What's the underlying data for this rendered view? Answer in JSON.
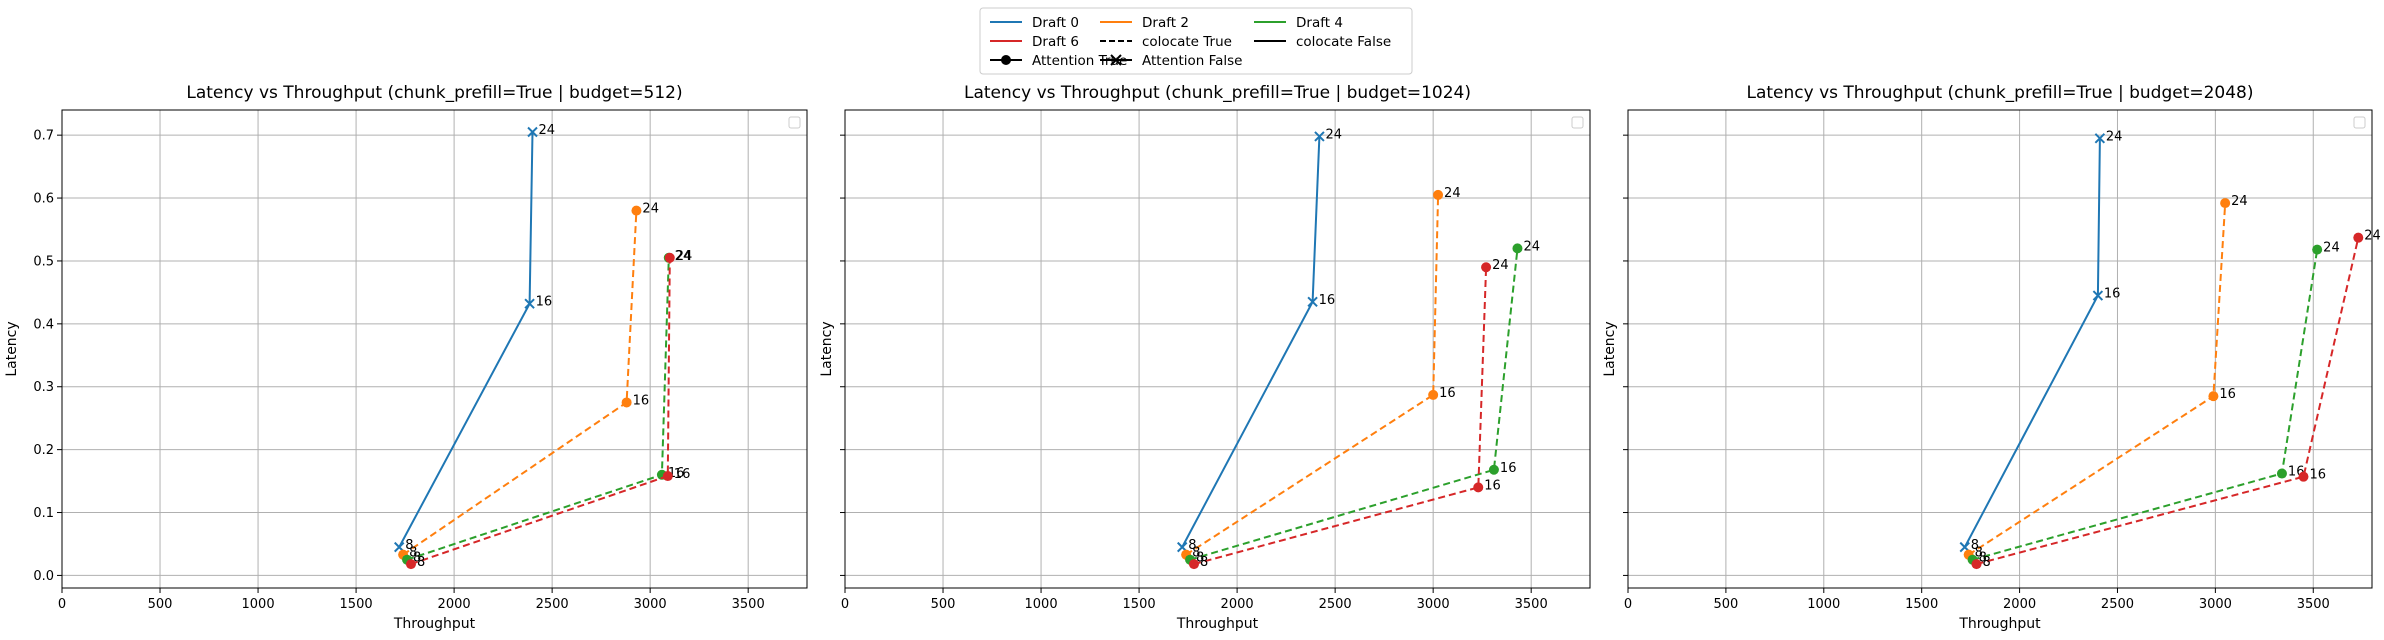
{
  "legend": {
    "entries": [
      {
        "label": "Draft 0",
        "color": "#1f77b4",
        "kind": "line"
      },
      {
        "label": "Draft 6",
        "color": "#d62728",
        "kind": "line"
      },
      {
        "label": "Attention True",
        "color": "#000000",
        "kind": "marker-o"
      },
      {
        "label": "Draft 2",
        "color": "#ff7f0e",
        "kind": "line"
      },
      {
        "label": "colocate True",
        "color": "#000000",
        "kind": "dashed"
      },
      {
        "label": "Attention False",
        "color": "#000000",
        "kind": "marker-x"
      },
      {
        "label": "Draft 4",
        "color": "#2ca02c",
        "kind": "line"
      },
      {
        "label": "colocate False",
        "color": "#000000",
        "kind": "solid"
      }
    ]
  },
  "chart_data": [
    {
      "type": "line",
      "title": "Latency vs Throughput (chunk_prefill=True | budget=512)",
      "xlabel": "Throughput",
      "ylabel": "Latency",
      "xlim": [
        0,
        3800
      ],
      "ylim": [
        -0.02,
        0.74
      ],
      "xticks": [
        "0",
        "500",
        "1000",
        "1500",
        "2000",
        "2500",
        "3000",
        "3500"
      ],
      "yticks": [
        "0.0",
        "0.1",
        "0.2",
        "0.3",
        "0.4",
        "0.5",
        "0.6",
        "0.7"
      ],
      "grid": true,
      "legend_placement": "top-right (empty box)",
      "series": [
        {
          "name": "Draft 0",
          "color": "#1f77b4",
          "dashed": false,
          "marker": "x",
          "points": [
            {
              "x": 1720,
              "y": 0.045,
              "label": "8"
            },
            {
              "x": 2385,
              "y": 0.432,
              "label": "16"
            },
            {
              "x": 2400,
              "y": 0.705,
              "label": "24"
            }
          ]
        },
        {
          "name": "Draft 2",
          "color": "#ff7f0e",
          "dashed": true,
          "marker": "o",
          "points": [
            {
              "x": 1740,
              "y": 0.033,
              "label": "8"
            },
            {
              "x": 2880,
              "y": 0.275,
              "label": "16"
            },
            {
              "x": 2930,
              "y": 0.58,
              "label": "24"
            }
          ]
        },
        {
          "name": "Draft 4",
          "color": "#2ca02c",
          "dashed": true,
          "marker": "o",
          "points": [
            {
              "x": 1760,
              "y": 0.025,
              "label": "8"
            },
            {
              "x": 3060,
              "y": 0.16,
              "label": "16"
            },
            {
              "x": 3095,
              "y": 0.505,
              "label": "24"
            }
          ]
        },
        {
          "name": "Draft 6",
          "color": "#d62728",
          "dashed": true,
          "marker": "o",
          "points": [
            {
              "x": 1780,
              "y": 0.018,
              "label": "8"
            },
            {
              "x": 3090,
              "y": 0.158,
              "label": "16"
            },
            {
              "x": 3100,
              "y": 0.505,
              "label": "24"
            }
          ]
        }
      ]
    },
    {
      "type": "line",
      "title": "Latency vs Throughput (chunk_prefill=True | budget=1024)",
      "xlabel": "Throughput",
      "ylabel": "Latency",
      "xlim": [
        0,
        3800
      ],
      "ylim": [
        -0.02,
        0.74
      ],
      "xticks": [
        "0",
        "500",
        "1000",
        "1500",
        "2000",
        "2500",
        "3000",
        "3500"
      ],
      "yticks": [],
      "grid": true,
      "legend_placement": "top-right (empty box)",
      "series": [
        {
          "name": "Draft 0",
          "color": "#1f77b4",
          "dashed": false,
          "marker": "x",
          "points": [
            {
              "x": 1720,
              "y": 0.045,
              "label": "8"
            },
            {
              "x": 2385,
              "y": 0.435,
              "label": "16"
            },
            {
              "x": 2420,
              "y": 0.698,
              "label": "24"
            }
          ]
        },
        {
          "name": "Draft 2",
          "color": "#ff7f0e",
          "dashed": true,
          "marker": "o",
          "points": [
            {
              "x": 1740,
              "y": 0.033,
              "label": "8"
            },
            {
              "x": 3000,
              "y": 0.287,
              "label": "16"
            },
            {
              "x": 3025,
              "y": 0.605,
              "label": "24"
            }
          ]
        },
        {
          "name": "Draft 4",
          "color": "#2ca02c",
          "dashed": true,
          "marker": "o",
          "points": [
            {
              "x": 1760,
              "y": 0.025,
              "label": "8"
            },
            {
              "x": 3310,
              "y": 0.168,
              "label": "16"
            },
            {
              "x": 3430,
              "y": 0.52,
              "label": "24"
            }
          ]
        },
        {
          "name": "Draft 6",
          "color": "#d62728",
          "dashed": true,
          "marker": "o",
          "points": [
            {
              "x": 1780,
              "y": 0.018,
              "label": "8"
            },
            {
              "x": 3230,
              "y": 0.14,
              "label": "16"
            },
            {
              "x": 3270,
              "y": 0.49,
              "label": "24"
            }
          ]
        }
      ]
    },
    {
      "type": "line",
      "title": "Latency vs Throughput (chunk_prefill=True | budget=2048)",
      "xlabel": "Throughput",
      "ylabel": "Latency",
      "xlim": [
        0,
        3800
      ],
      "ylim": [
        -0.02,
        0.74
      ],
      "xticks": [
        "0",
        "500",
        "1000",
        "1500",
        "2000",
        "2500",
        "3000",
        "3500"
      ],
      "yticks": [],
      "grid": true,
      "legend_placement": "top-right (empty box)",
      "series": [
        {
          "name": "Draft 0",
          "color": "#1f77b4",
          "dashed": false,
          "marker": "x",
          "points": [
            {
              "x": 1720,
              "y": 0.045,
              "label": "8"
            },
            {
              "x": 2400,
              "y": 0.445,
              "label": "16"
            },
            {
              "x": 2410,
              "y": 0.695,
              "label": "24"
            }
          ]
        },
        {
          "name": "Draft 2",
          "color": "#ff7f0e",
          "dashed": true,
          "marker": "o",
          "points": [
            {
              "x": 1740,
              "y": 0.033,
              "label": "8"
            },
            {
              "x": 2990,
              "y": 0.285,
              "label": "16"
            },
            {
              "x": 3050,
              "y": 0.592,
              "label": "24"
            }
          ]
        },
        {
          "name": "Draft 4",
          "color": "#2ca02c",
          "dashed": true,
          "marker": "o",
          "points": [
            {
              "x": 1760,
              "y": 0.025,
              "label": "8"
            },
            {
              "x": 3340,
              "y": 0.162,
              "label": "16"
            },
            {
              "x": 3520,
              "y": 0.518,
              "label": "24"
            }
          ]
        },
        {
          "name": "Draft 6",
          "color": "#d62728",
          "dashed": true,
          "marker": "o",
          "points": [
            {
              "x": 1780,
              "y": 0.018,
              "label": "8"
            },
            {
              "x": 3450,
              "y": 0.157,
              "label": "16"
            },
            {
              "x": 3730,
              "y": 0.537,
              "label": "24"
            }
          ]
        }
      ]
    }
  ]
}
